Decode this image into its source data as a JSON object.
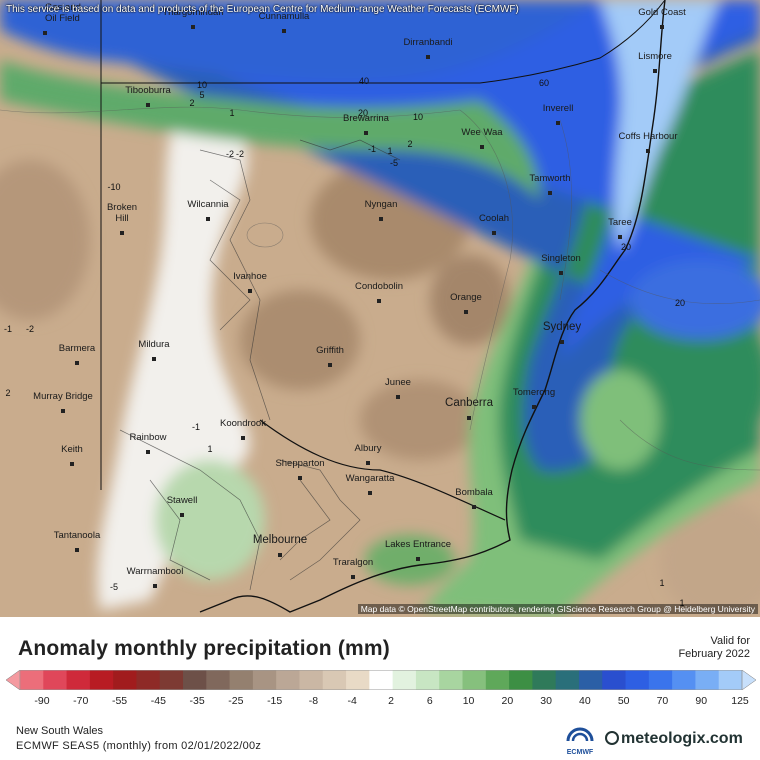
{
  "notice": "This service is based on data and products of the European Centre for Medium-range Weather Forecasts (ECMWF)",
  "attribution": "Map data © OpenStreetMap contributors, rendering GIScience Research Group @ Heidelberg University",
  "title": "Anomaly monthly precipitation (mm)",
  "valid_label": "Valid for",
  "valid_date": "February 2022",
  "region": "New South Wales",
  "model_run": "ECMWF SEAS5 (monthly) from 02/01/2022/00z",
  "brand": "meteologix.com",
  "ecmwf_label": "ECMWF",
  "legend": {
    "ticks": [
      "-90",
      "-70",
      "-55",
      "-45",
      "-35",
      "-25",
      "-15",
      "-8",
      "-4",
      "2",
      "6",
      "10",
      "20",
      "30",
      "40",
      "50",
      "70",
      "90",
      "125"
    ],
    "colors": [
      "#f49aa0",
      "#ec6e7a",
      "#e0475a",
      "#cf2a3a",
      "#b81c23",
      "#a11c1d",
      "#8e2a27",
      "#7d3a33",
      "#6d5048",
      "#80685c",
      "#94806f",
      "#a89483",
      "#bba796",
      "#cab7a4",
      "#d9c8b4",
      "#e8dac6",
      "#ffffff",
      "#e2f2df",
      "#c8e6c3",
      "#a8d5a0",
      "#86c07d",
      "#5fa85a",
      "#3d8f44",
      "#2f7a5a",
      "#2a6f7a",
      "#2b5fa6",
      "#2a4fcf",
      "#2e5fe3",
      "#3a74ec",
      "#5590f2",
      "#79aef5",
      "#a3cbf8",
      "#c8e0fb"
    ]
  },
  "map": {
    "cities": [
      {
        "name": "Gas and Oil Field"
      },
      {
        "name": "Thargomindah"
      },
      {
        "name": "Cunnamulla"
      },
      {
        "name": "Gold Coast"
      },
      {
        "name": "Dirranbandi"
      },
      {
        "name": "Lismore"
      },
      {
        "name": "Tibooburra"
      },
      {
        "name": "Inverell"
      },
      {
        "name": "Brewarrina"
      },
      {
        "name": "Wee Waa"
      },
      {
        "name": "Coffs Harbour"
      },
      {
        "name": "Tamworth"
      },
      {
        "name": "Broken Hill"
      },
      {
        "name": "Wilcannia"
      },
      {
        "name": "Nyngan"
      },
      {
        "name": "Coolah"
      },
      {
        "name": "Taree"
      },
      {
        "name": "Singleton"
      },
      {
        "name": "Ivanhoe"
      },
      {
        "name": "Condobolin"
      },
      {
        "name": "Orange"
      },
      {
        "name": "Sydney"
      },
      {
        "name": "Barmera"
      },
      {
        "name": "Mildura"
      },
      {
        "name": "Griffith"
      },
      {
        "name": "Murray Bridge"
      },
      {
        "name": "Junee"
      },
      {
        "name": "Tomerong"
      },
      {
        "name": "Canberra"
      },
      {
        "name": "Rainbow"
      },
      {
        "name": "Koondrook"
      },
      {
        "name": "Keith"
      },
      {
        "name": "Albury"
      },
      {
        "name": "Shepparton"
      },
      {
        "name": "Wangaratta"
      },
      {
        "name": "Bombala"
      },
      {
        "name": "Stawell"
      },
      {
        "name": "Tantanoola"
      },
      {
        "name": "Melbourne"
      },
      {
        "name": "Lakes Entrance"
      },
      {
        "name": "Traralgon"
      },
      {
        "name": "Warrnambool"
      }
    ],
    "contour_labels": [
      "10",
      "5",
      "2",
      "40",
      "60",
      "20",
      "10",
      "1",
      "2",
      "-1",
      "-5",
      "-2",
      "-10",
      "-1",
      "1",
      "20",
      "20",
      "1",
      "-1",
      "-2",
      "2",
      "1",
      "-2",
      "-5",
      "1"
    ]
  }
}
